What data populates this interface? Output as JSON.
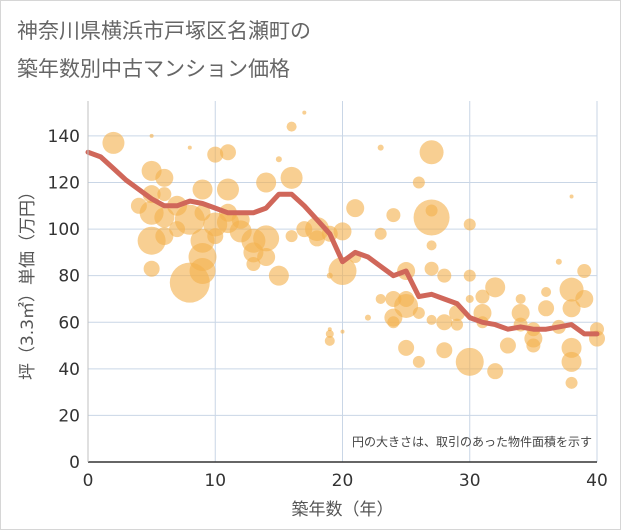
{
  "title_lines": [
    "神奈川県横浜市戸塚区名瀬町の",
    "築年数別中古マンション価格"
  ],
  "chart_data": {
    "type": "scatter",
    "title": "神奈川県横浜市戸塚区名瀬町の築年数別中古マンション価格",
    "xlabel": "築年数（年）",
    "ylabel": "坪（3.3㎡）単価（万円）",
    "xlim": [
      0,
      40
    ],
    "ylim": [
      0,
      155
    ],
    "xticks": [
      0,
      10,
      20,
      30,
      40
    ],
    "yticks": [
      0,
      20,
      40,
      60,
      80,
      100,
      120,
      140
    ],
    "grid": true,
    "annotation": "円の大きさは、取引のあった物件面積を示す",
    "colors": {
      "bubble": "#f3b24f",
      "trend": "#d0675a",
      "axis_text": "#333333",
      "grid": "#c9d6e6",
      "plot_bg": "#ffffff"
    },
    "series": [
      {
        "type": "line",
        "x": [
          0,
          1,
          2,
          3,
          4,
          5,
          6,
          7,
          8,
          9,
          10,
          11,
          12,
          13,
          14,
          15,
          16,
          17,
          18,
          19,
          20,
          21,
          22,
          23,
          24,
          25,
          26,
          27,
          28,
          29,
          30,
          31,
          32,
          33,
          34,
          35,
          36,
          37,
          38,
          39,
          40
        ],
        "y": [
          133,
          131,
          126,
          121,
          117,
          113,
          110,
          110,
          112,
          111,
          109,
          107,
          107,
          107,
          109,
          115,
          115,
          110,
          104,
          98,
          86,
          90,
          88,
          84,
          80,
          82,
          71,
          72,
          70,
          68,
          62,
          60,
          59,
          57,
          58,
          57,
          57,
          58,
          59,
          55,
          55
        ]
      },
      {
        "type": "bubble",
        "points": [
          [
            2,
            137,
            11
          ],
          [
            4,
            110,
            8
          ],
          [
            5,
            125,
            10
          ],
          [
            5,
            115,
            9
          ],
          [
            5,
            107,
            12
          ],
          [
            5,
            95,
            14
          ],
          [
            5,
            83,
            8
          ],
          [
            5,
            140,
            2
          ],
          [
            6,
            122,
            9
          ],
          [
            6,
            115,
            7
          ],
          [
            6,
            105,
            10
          ],
          [
            6,
            97,
            9
          ],
          [
            7,
            110,
            10
          ],
          [
            7,
            100,
            8
          ],
          [
            8,
            104,
            15
          ],
          [
            8,
            77,
            20
          ],
          [
            8,
            135,
            2
          ],
          [
            9,
            117,
            10
          ],
          [
            9,
            107,
            8
          ],
          [
            9,
            95,
            12
          ],
          [
            9,
            88,
            14
          ],
          [
            9,
            82,
            13
          ],
          [
            10,
            132,
            8
          ],
          [
            10,
            102,
            12
          ],
          [
            10,
            97,
            8
          ],
          [
            11,
            133,
            8
          ],
          [
            11,
            117,
            11
          ],
          [
            11,
            107,
            9
          ],
          [
            11,
            103,
            11
          ],
          [
            12,
            104,
            9
          ],
          [
            12,
            99,
            11
          ],
          [
            13,
            95,
            12
          ],
          [
            13,
            90,
            10
          ],
          [
            13,
            85,
            7
          ],
          [
            14,
            120,
            10
          ],
          [
            14,
            96,
            13
          ],
          [
            14,
            88,
            9
          ],
          [
            15,
            130,
            3
          ],
          [
            15,
            80,
            10
          ],
          [
            16,
            122,
            11
          ],
          [
            16,
            144,
            5
          ],
          [
            16,
            97,
            6
          ],
          [
            17,
            100,
            8
          ],
          [
            17,
            150,
            2
          ],
          [
            18,
            100,
            12
          ],
          [
            18,
            96,
            8
          ],
          [
            19,
            98,
            8
          ],
          [
            19,
            80,
            3
          ],
          [
            19,
            57,
            2
          ],
          [
            19,
            55,
            4
          ],
          [
            19,
            52,
            5
          ],
          [
            20,
            99,
            9
          ],
          [
            20,
            82,
            14
          ],
          [
            20,
            56,
            2
          ],
          [
            21,
            109,
            9
          ],
          [
            21,
            88,
            6
          ],
          [
            22,
            62,
            3
          ],
          [
            23,
            135,
            3
          ],
          [
            23,
            98,
            6
          ],
          [
            23,
            70,
            5
          ],
          [
            24,
            106,
            7
          ],
          [
            24,
            70,
            8
          ],
          [
            24,
            62,
            9
          ],
          [
            24,
            60,
            6
          ],
          [
            25,
            82,
            9
          ],
          [
            25,
            70,
            8
          ],
          [
            25,
            67,
            12
          ],
          [
            25,
            49,
            8
          ],
          [
            26,
            64,
            6
          ],
          [
            26,
            43,
            6
          ],
          [
            26,
            120,
            6
          ],
          [
            27,
            133,
            12
          ],
          [
            27,
            108,
            6
          ],
          [
            27,
            105,
            18
          ],
          [
            27,
            93,
            5
          ],
          [
            27,
            83,
            7
          ],
          [
            27,
            61,
            5
          ],
          [
            28,
            60,
            8
          ],
          [
            28,
            48,
            8
          ],
          [
            28,
            80,
            7
          ],
          [
            29,
            64,
            8
          ],
          [
            29,
            59,
            6
          ],
          [
            30,
            102,
            6
          ],
          [
            30,
            80,
            6
          ],
          [
            30,
            70,
            4
          ],
          [
            30,
            43,
            14
          ],
          [
            31,
            71,
            7
          ],
          [
            31,
            64,
            9
          ],
          [
            31,
            60,
            6
          ],
          [
            32,
            75,
            10
          ],
          [
            32,
            39,
            8
          ],
          [
            33,
            50,
            8
          ],
          [
            34,
            70,
            5
          ],
          [
            34,
            64,
            9
          ],
          [
            34,
            59,
            7
          ],
          [
            35,
            57,
            7
          ],
          [
            35,
            53,
            9
          ],
          [
            35,
            50,
            7
          ],
          [
            36,
            73,
            5
          ],
          [
            36,
            66,
            8
          ],
          [
            37,
            58,
            7
          ],
          [
            37,
            86,
            3
          ],
          [
            38,
            74,
            12
          ],
          [
            38,
            66,
            9
          ],
          [
            38,
            49,
            10
          ],
          [
            38,
            43,
            10
          ],
          [
            38,
            34,
            6
          ],
          [
            38,
            114,
            2
          ],
          [
            39,
            82,
            7
          ],
          [
            39,
            70,
            9
          ],
          [
            40,
            57,
            7
          ],
          [
            40,
            53,
            8
          ]
        ]
      }
    ]
  }
}
